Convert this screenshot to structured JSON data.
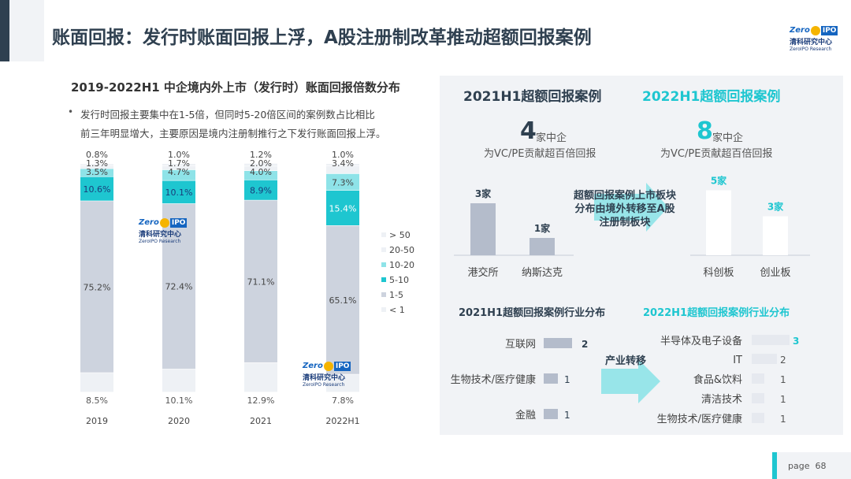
{
  "header": {
    "title": "账面回报：发行时账面回报上浮，A股注册制改革推动超额回报案例"
  },
  "logo": {
    "zero": "Zero",
    "ipo": "IPO",
    "cn": "清科研究中心",
    "en": "ZeroIPO Research"
  },
  "left": {
    "title": "2019-2022H1 中企境内外上市（发行时）账面回报倍数分布",
    "bullet_line1": "发行时回报主要集中在1-5倍，但同时5-20倍区间的案例数占比相比",
    "bullet_line2": "前三年明显增大，主要原因是境内注册制推行之下发行账面回报上浮。",
    "bullet_dot": "•"
  },
  "chart_data": [
    {
      "type": "bar",
      "stacked": true,
      "normalized": true,
      "categories": [
        "2019",
        "2020",
        "2021",
        "2022H1"
      ],
      "series": [
        {
          "name": "< 1",
          "values": [
            8.5,
            10.1,
            12.9,
            7.8
          ],
          "color": "#ffffff"
        },
        {
          "name": "1-5",
          "values": [
            75.2,
            72.4,
            71.1,
            65.1
          ],
          "color": "#cdd3de"
        },
        {
          "name": "5-10",
          "values": [
            10.6,
            10.1,
            8.9,
            15.4
          ],
          "color": "#1ec6d0"
        },
        {
          "name": "10-20",
          "values": [
            3.5,
            4.7,
            4.0,
            7.3
          ],
          "color": "#8ee3e8"
        },
        {
          "name": "20-50",
          "values": [
            1.3,
            1.7,
            2.0,
            3.4
          ],
          "color": "#ffffff"
        },
        {
          "name": "> 50",
          "values": [
            0.8,
            1.0,
            1.2,
            1.0
          ],
          "color": "#ffffff"
        }
      ],
      "labels_outside_top": [
        [
          "0.8%",
          "1.3%",
          "3.5%"
        ],
        [
          "1.0%",
          "1.7%",
          "4.7%"
        ],
        [
          "1.2%",
          "2.0%",
          "4.0%"
        ],
        [
          "1.0%",
          "3.4%"
        ]
      ],
      "bar_labels": [
        [
          "8.5%",
          "75.2%",
          "10.6%"
        ],
        [
          "10.1%",
          "72.4%",
          "10.1%"
        ],
        [
          "12.9%",
          "71.1%",
          "8.9%"
        ],
        [
          "7.8%",
          "65.1%",
          "15.4%",
          "7.3%"
        ]
      ],
      "legend": [
        "> 50",
        "20-50",
        "10-20",
        "5-10",
        "1-5",
        "< 1"
      ],
      "legend_position": "right"
    },
    {
      "type": "bar",
      "title": "2021H1超额回报案例",
      "categories": [
        "港交所",
        "纳斯达克"
      ],
      "values": [
        3,
        1
      ],
      "value_labels": [
        "3家",
        "1家"
      ],
      "color": "#b4bccb"
    },
    {
      "type": "bar",
      "title": "2022H1超额回报案例",
      "categories": [
        "科创板",
        "创业板"
      ],
      "values": [
        5,
        3
      ],
      "value_labels": [
        "5家",
        "3家"
      ],
      "color": "#e6e9ef"
    },
    {
      "type": "bar",
      "orientation": "horizontal",
      "title": "2021H1超额回报案例行业分布",
      "categories": [
        "互联网",
        "生物技术/医疗健康",
        "金融"
      ],
      "values": [
        2,
        1,
        1
      ],
      "value_labels": [
        "2",
        "1",
        "1"
      ]
    },
    {
      "type": "bar",
      "orientation": "horizontal",
      "title": "2022H1超额回报案例行业分布",
      "categories": [
        "半导体及电子设备",
        "IT",
        "食品&饮料",
        "清洁技术",
        "生物技术/医疗健康"
      ],
      "values": [
        3,
        2,
        1,
        1,
        1
      ],
      "value_labels": [
        "3",
        "2",
        "1",
        "1",
        "1"
      ]
    }
  ],
  "right": {
    "h2021": "2021H1超额回报案例",
    "h2022": "2022H1超额回报案例",
    "num2021": "4",
    "num2022": "8",
    "unit": "家中企",
    "sub": "为VC/PE贡献超百倍回报",
    "arrow1_line1": "超额回报案例上市板块",
    "arrow1_line2": "分布由境外转移至A股",
    "arrow1_line3": "注册制板块",
    "ind2021_title": "2021H1超额回报案例行业分布",
    "ind2022_title": "2022H1超额回报案例行业分布",
    "arrow2": "产业转移"
  },
  "footer": {
    "page_label": "page",
    "page_num": "68"
  },
  "colors": {
    "dark": "#2f4050",
    "teal": "#1ec6d0",
    "light_teal": "#8ee3e8",
    "grey": "#cdd3de",
    "panel": "#f1f3f6"
  }
}
